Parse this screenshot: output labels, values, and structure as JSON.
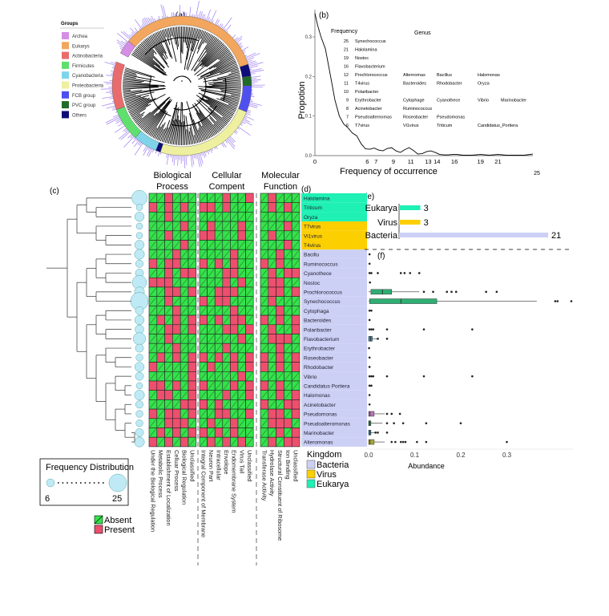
{
  "panel_labels": {
    "a": "(a)",
    "b": "(b)",
    "c": "(c)",
    "d": "(d)",
    "e": "(e)",
    "f": "(f)"
  },
  "colors": {
    "absent": "#33e34a",
    "present": "#ee4f6e",
    "bacteria": "#cdd0f5",
    "virus": "#fccf00",
    "eukarya": "#1ff0b4",
    "density": "#000000",
    "hist": "#a98cf2"
  },
  "groups_legend": {
    "title": "Groups",
    "items": [
      {
        "label": "Archea",
        "color": "#d58ee6"
      },
      {
        "label": "Eukarys",
        "color": "#f2a65e"
      },
      {
        "label": "Actinobacteria",
        "color": "#ea6b6b"
      },
      {
        "label": "Firmicutes",
        "color": "#5fe06e"
      },
      {
        "label": "Cyanobacteria",
        "color": "#7fd4ea"
      },
      {
        "label": "Proteobacteria",
        "color": "#eef0a0"
      },
      {
        "label": "FCB group",
        "color": "#4f4ff0"
      },
      {
        "label": "PVC group",
        "color": "#1f6b2a"
      },
      {
        "label": "Others",
        "color": "#0d0d7a"
      }
    ]
  },
  "chart_data": [
    {
      "type": "line",
      "panel": "b",
      "title": "",
      "xlabel": "Frequency of occurrence",
      "ylabel": "Propotion",
      "xlim": [
        0,
        25
      ],
      "ylim": [
        0,
        0.36
      ],
      "xticks": [
        "0",
        "6",
        "7",
        "9",
        "11",
        "13",
        "14",
        "16",
        "19",
        "21"
      ],
      "xtick_values": [
        0,
        6,
        7,
        9,
        11,
        13,
        14,
        16,
        19,
        21
      ],
      "extra_label": "25",
      "yticks": [
        "0.0",
        "0.1",
        "0.2",
        "0.3"
      ],
      "ytick_values": [
        0,
        0.1,
        0.2,
        0.3
      ],
      "series": [
        {
          "name": "density",
          "x": [
            0,
            0.3,
            0.7,
            1.2,
            1.8,
            2.3,
            2.8,
            3.3,
            3.8,
            4.3,
            4.8,
            5.3,
            5.8,
            6.3,
            6.8,
            7.3,
            7.8,
            8.3,
            8.8,
            9.3,
            9.8,
            10.3,
            10.8,
            11.3,
            11.8,
            12.3,
            12.8,
            13.3,
            13.8,
            14.3,
            14.8,
            15.3,
            15.8,
            16.3,
            17,
            18,
            19,
            20,
            21,
            22,
            23,
            24,
            25
          ],
          "y": [
            0.36,
            0.33,
            0.3,
            0.27,
            0.2,
            0.14,
            0.1,
            0.08,
            0.07,
            0.057,
            0.05,
            0.03,
            0.017,
            0.016,
            0.019,
            0.014,
            0.012,
            0.018,
            0.02,
            0.012,
            0.008,
            0.015,
            0.02,
            0.013,
            0.004,
            0.005,
            0.01,
            0.012,
            0.008,
            0.003,
            0.002,
            0.002,
            0.003,
            0.003,
            0.001,
            0.001,
            0.003,
            0.001,
            0.003,
            0.001,
            0.001,
            0.001,
            0.004
          ]
        }
      ],
      "annotation": {
        "header_frequency": "Frequency",
        "header_genus": "Genus",
        "rows": [
          {
            "freq": "25",
            "genera": [
              "Synechococcus"
            ]
          },
          {
            "freq": "21",
            "genera": [
              "Halolamina"
            ]
          },
          {
            "freq": "19",
            "genera": [
              "Nostoc"
            ]
          },
          {
            "freq": "16",
            "genera": [
              "Flavobacterium"
            ]
          },
          {
            "freq": "12",
            "genera": [
              "Prochlorococcus",
              "Alternomas",
              "Bacillus",
              "Halomonas"
            ]
          },
          {
            "freq": "11",
            "genera": [
              "T4virus",
              "Bacteroides",
              "Rhodobacter",
              "Oryza"
            ]
          },
          {
            "freq": "10",
            "genera": [
              "Polaribacter"
            ]
          },
          {
            "freq": "9",
            "genera": [
              "Erythrobacter",
              "Cytophage",
              "Cyanothece",
              "Vibrio",
              "Marinobacter"
            ]
          },
          {
            "freq": "8",
            "genera": [
              "Acinetobacter",
              "Ruminococcus"
            ]
          },
          {
            "freq": "7",
            "genera": [
              "Pseudoalternomas",
              "Roseobacter",
              "Pseudomonas"
            ]
          },
          {
            "freq": "6",
            "genera": [
              "T7virus",
              "Vi1virus",
              "Triticum",
              "Candidatus_Portiera"
            ]
          }
        ]
      }
    },
    {
      "type": "heatmap",
      "panel": "c",
      "groups": [
        {
          "title1": "Biological",
          "title2": "Process",
          "columns": [
            "Under the Biological Regulation",
            "Metabolic Process",
            "Establishment of Localization",
            "Celluar Process",
            "Biological Regulation",
            "Unclassified"
          ]
        },
        {
          "title1": "Cellular",
          "title2": "Compent",
          "columns": [
            "Integral Component of Membrane",
            "Neuron Part",
            "Intracellular",
            "Envolope",
            "Endomembrane System",
            "Virus Tail",
            "Unclassified"
          ]
        },
        {
          "title1": "Molecular",
          "title2": "Function",
          "columns": [
            "Transferase Activity",
            "Hydrolase Activity",
            "Structural Constituent of Ribosome",
            "Ion Binding",
            "Unclassified"
          ]
        }
      ],
      "legend": {
        "absent": "Absent",
        "present": "Present"
      },
      "freq_legend": {
        "title": "Frequency Distribution",
        "min": "6",
        "max": "25"
      },
      "rows": [
        {
          "genus": "Halolamina",
          "kingdom": "eukarya",
          "freq": 21,
          "bp": "001000",
          "cc": "0001001",
          "mf": "01000"
        },
        {
          "genus": "Triticum",
          "kingdom": "eukarya",
          "freq": 6,
          "bp": "101010",
          "cc": "1101000",
          "mf": "01010"
        },
        {
          "genus": "Oryza",
          "kingdom": "eukarya",
          "freq": 11,
          "bp": "001000",
          "cc": "0000000",
          "mf": "00000"
        },
        {
          "genus": "T7virus",
          "kingdom": "virus",
          "freq": 6,
          "bp": "000010",
          "cc": "0100010",
          "mf": "00010"
        },
        {
          "genus": "Vi1virus",
          "kingdom": "virus",
          "freq": 6,
          "bp": "001000",
          "cc": "1100010",
          "mf": "01000"
        },
        {
          "genus": "T4virus",
          "kingdom": "virus",
          "freq": 11,
          "bp": "000010",
          "cc": "0000000",
          "mf": "00010"
        },
        {
          "genus": "Bacillu",
          "kingdom": "bacteria",
          "freq": 12,
          "bp": "000100",
          "cc": "0000100",
          "mf": "00100"
        },
        {
          "genus": "Ruminococcus",
          "kingdom": "bacteria",
          "freq": 8,
          "bp": "101100",
          "cc": "1010100",
          "mf": "10100"
        },
        {
          "genus": "Cyanothece",
          "kingdom": "bacteria",
          "freq": 9,
          "bp": "001011",
          "cc": "0001100",
          "mf": "01011"
        },
        {
          "genus": "Nostoc",
          "kingdom": "bacteria",
          "freq": 19,
          "bp": "111000",
          "cc": "0001010",
          "mf": "01100"
        },
        {
          "genus": "Prochlorococcus",
          "kingdom": "bacteria",
          "freq": 12,
          "bp": "001101",
          "cc": "0011100",
          "mf": "01101"
        },
        {
          "genus": "Synechococcus",
          "kingdom": "bacteria",
          "freq": 25,
          "bp": "001000",
          "cc": "1011000",
          "mf": "01000"
        },
        {
          "genus": "Cytophaga",
          "kingdom": "bacteria",
          "freq": 9,
          "bp": "000100",
          "cc": "0000100",
          "mf": "00100"
        },
        {
          "genus": "Bacteroides",
          "kingdom": "bacteria",
          "freq": 11,
          "bp": "010101",
          "cc": "1010110",
          "mf": "10101"
        },
        {
          "genus": "Polaribacter",
          "kingdom": "bacteria",
          "freq": 10,
          "bp": "001101",
          "cc": "0001101",
          "mf": "01001"
        },
        {
          "genus": "Flavobacterium",
          "kingdom": "bacteria",
          "freq": 16,
          "bp": "001000",
          "cc": "0000010",
          "mf": "01110"
        },
        {
          "genus": "Erythrobacter",
          "kingdom": "bacteria",
          "freq": 9,
          "bp": "000100",
          "cc": "0001000",
          "mf": "00100"
        },
        {
          "genus": "Roseobacter",
          "kingdom": "bacteria",
          "freq": 7,
          "bp": "010101",
          "cc": "1010101",
          "mf": "10101"
        },
        {
          "genus": "Rhodobacter",
          "kingdom": "bacteria",
          "freq": 11,
          "bp": "100001",
          "cc": "0100101",
          "mf": "10101"
        },
        {
          "genus": "Vibrio",
          "kingdom": "bacteria",
          "freq": 9,
          "bp": "000001",
          "cc": "0000010",
          "mf": "00000"
        },
        {
          "genus": "Candidatus Portiera",
          "kingdom": "bacteria",
          "freq": 6,
          "bp": "110101",
          "cc": "1000101",
          "mf": "10100"
        },
        {
          "genus": "Halomonas",
          "kingdom": "bacteria",
          "freq": 12,
          "bp": "011001",
          "cc": "0001001",
          "mf": "00101"
        },
        {
          "genus": "Acinetobacter",
          "kingdom": "bacteria",
          "freq": 8,
          "bp": "000011",
          "cc": "1010000",
          "mf": "10011"
        },
        {
          "genus": "Pseudomonas",
          "kingdom": "bacteria",
          "freq": 7,
          "bp": "101101",
          "cc": "0011001",
          "mf": "01101"
        },
        {
          "genus": "Pseudoalteromonas",
          "kingdom": "bacteria",
          "freq": 7,
          "bp": "001110",
          "cc": "0100100",
          "mf": "01110"
        },
        {
          "genus": "Marinobacter",
          "kingdom": "bacteria",
          "freq": 9,
          "bp": "010101",
          "cc": "1010100",
          "mf": "00101"
        },
        {
          "genus": "Alteromonas",
          "kingdom": "bacteria",
          "freq": 12,
          "bp": "101010",
          "cc": "0101010",
          "mf": "01011"
        }
      ],
      "kingdom_legend": {
        "title": "Kingdom",
        "items": [
          {
            "key": "bacteria",
            "label": "Bacteria"
          },
          {
            "key": "virus",
            "label": "Virus"
          },
          {
            "key": "eukarya",
            "label": "Eukarya"
          }
        ]
      }
    },
    {
      "type": "bar",
      "panel": "e",
      "orientation": "horizontal",
      "categories": [
        "Eukarya",
        "Virus",
        "Bacteria"
      ],
      "values": [
        3,
        3,
        21
      ],
      "colors": [
        "#1ff0b4",
        "#fccf00",
        "#cdd0f5"
      ]
    },
    {
      "type": "boxplot",
      "panel": "f",
      "xlabel": "Abundance",
      "xlim": [
        0,
        0.45
      ],
      "xticks": [
        "0.0",
        "0.1",
        "0.2",
        "0.3"
      ],
      "xtick_values": [
        0,
        0.1,
        0.2,
        0.3
      ],
      "series": [
        {
          "genus": "Bacillu",
          "outliers": [
            0.002
          ]
        },
        {
          "genus": "Ruminococcus",
          "outliers": [
            0.002
          ]
        },
        {
          "genus": "Cyanothece",
          "outliers": [
            0.002,
            0.006,
            0.02,
            0.07,
            0.078,
            0.09,
            0.11
          ]
        },
        {
          "genus": "Nostoc",
          "outliers": [
            0.003
          ]
        },
        {
          "genus": "Prochlorococcus",
          "box": [
            0.005,
            0.03,
            0.05
          ],
          "whisker": [
            0.0,
            0.11
          ],
          "color": "#2fae73",
          "outliers": [
            0.12,
            0.14,
            0.17,
            0.18,
            0.19,
            0.255,
            0.278
          ]
        },
        {
          "genus": "Synechococcus",
          "box": [
            0.002,
            0.07,
            0.148
          ],
          "whisker": [
            0.0,
            0.365
          ],
          "color": "#2fae73",
          "outliers": [
            0.405,
            0.41,
            0.44
          ]
        },
        {
          "genus": "Cytophaga",
          "outliers": [
            0.002,
            0.006
          ]
        },
        {
          "genus": "Bacteroides",
          "outliers": [
            0.002
          ]
        },
        {
          "genus": "Polaribacter",
          "outliers": [
            0.002,
            0.006,
            0.01,
            0.04,
            0.12,
            0.225
          ]
        },
        {
          "genus": "Flavobacterium",
          "box": [
            0.0,
            0.004,
            0.008
          ],
          "whisker": [
            0.0,
            0.02
          ],
          "color": "#3b84a6",
          "outliers": [
            0.02,
            0.04
          ]
        },
        {
          "genus": "Erythrobacter",
          "outliers": [
            0.001
          ]
        },
        {
          "genus": "Roseobacter",
          "outliers": [
            0.002
          ]
        },
        {
          "genus": "Rhodobacter",
          "outliers": [
            0.002
          ]
        },
        {
          "genus": "Vibrio",
          "outliers": [
            0.002,
            0.006,
            0.01,
            0.04,
            0.12,
            0.225
          ]
        },
        {
          "genus": "Candidatus Portiera",
          "outliers": [
            0.002,
            0.006
          ]
        },
        {
          "genus": "Halomonas",
          "outliers": [
            0.002
          ]
        },
        {
          "genus": "Acinetobacter",
          "outliers": [
            0.002
          ]
        },
        {
          "genus": "Pseudomonas",
          "box": [
            0.0,
            0.003,
            0.012
          ],
          "whisker": [
            0.0,
            0.035
          ],
          "color": "#b777b9",
          "outliers": [
            0.04,
            0.05,
            0.068
          ]
        },
        {
          "genus": "Pseudoalteromonas",
          "box": [
            0.0,
            0.002,
            0.005
          ],
          "whisker": [
            0.0,
            0.03
          ],
          "color": "#2e8b57",
          "outliers": [
            0.04,
            0.055,
            0.075,
            0.125,
            0.2
          ]
        },
        {
          "genus": "Marinobacter",
          "box": [
            0.0,
            0.003,
            0.005
          ],
          "whisker": [
            0.0,
            0.015
          ],
          "color": "#3b84a6",
          "outliers": [
            0.015,
            0.02,
            0.04
          ]
        },
        {
          "genus": "Alteromonas",
          "box": [
            0.0,
            0.003,
            0.012
          ],
          "whisker": [
            0.0,
            0.035
          ],
          "color": "#a8a834",
          "outliers": [
            0.05,
            0.058,
            0.07,
            0.075,
            0.08,
            0.105,
            0.125,
            0.3
          ]
        }
      ]
    }
  ]
}
